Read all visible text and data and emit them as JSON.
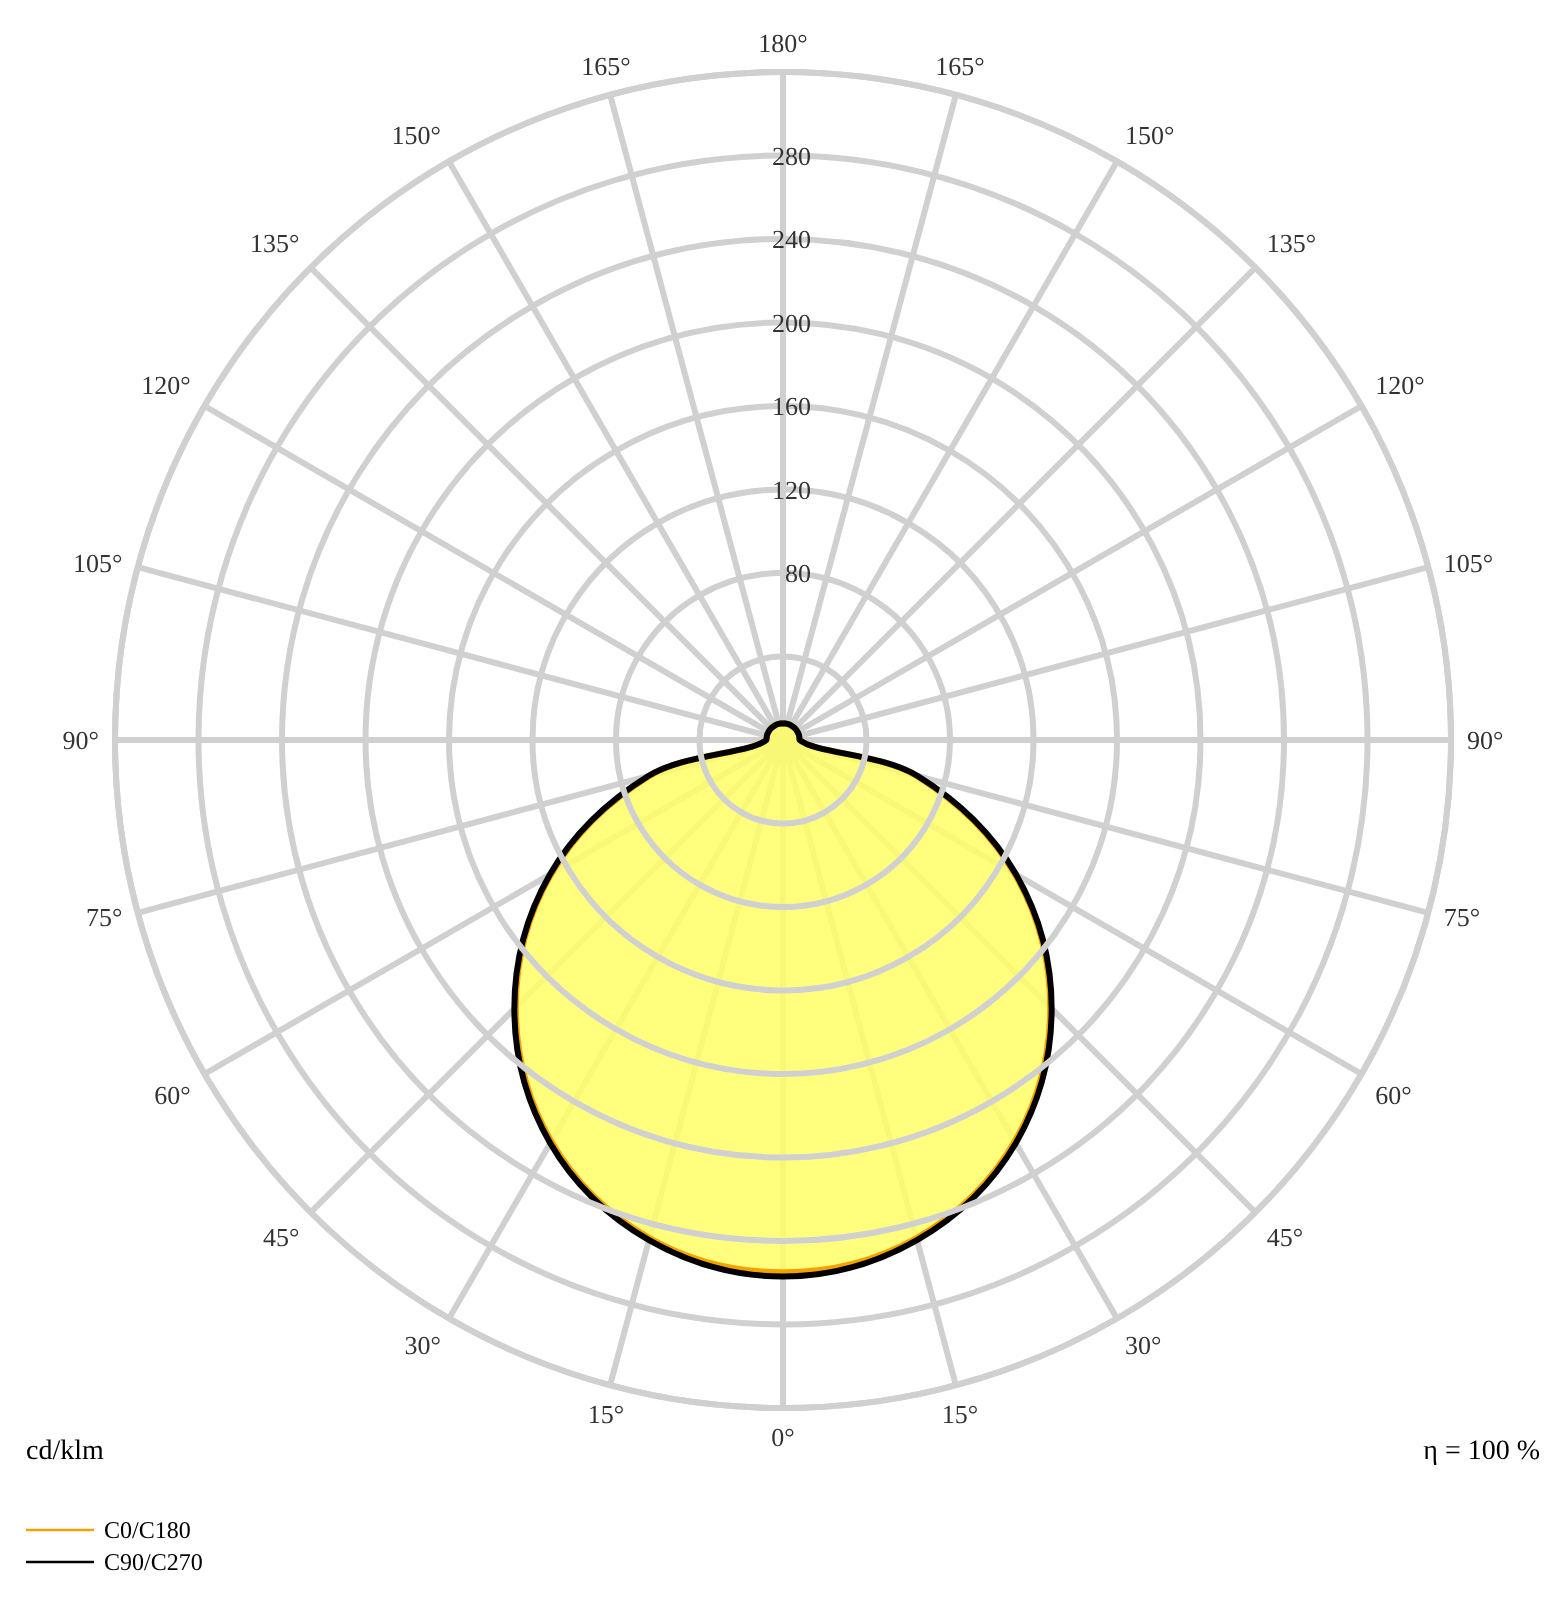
{
  "chart_data": {
    "type": "radar",
    "ylabel": "cd/klm",
    "annotations": [
      "η = 100 %"
    ],
    "categories": [
      "180°",
      "165°",
      "150°",
      "135°",
      "120°",
      "105°",
      "90°",
      "75°",
      "60°",
      "45°",
      "30°",
      "15°",
      "0°",
      "15°",
      "30°",
      "45°",
      "60°",
      "75°",
      "90°",
      "105°",
      "120°",
      "135°",
      "150°",
      "165°"
    ],
    "series": [
      {
        "name": "C0/C180",
        "color": "#f5a200",
        "values": [
          8,
          8,
          8,
          8,
          8,
          8,
          8,
          66,
          128,
          181,
          222,
          247,
          255,
          247,
          222,
          181,
          128,
          66,
          8,
          8,
          8,
          8,
          8,
          8
        ]
      },
      {
        "name": "C90/C270",
        "color": "#000000",
        "values": [
          8,
          8,
          8,
          8,
          8,
          8,
          8,
          67,
          129,
          182,
          223,
          248,
          257,
          248,
          223,
          182,
          129,
          67,
          8,
          8,
          8,
          8,
          8,
          8
        ]
      }
    ],
    "ylim": [
      0,
      320
    ],
    "yticks": [
      80,
      120,
      160,
      200,
      240,
      280
    ],
    "grid": true,
    "legend": "bottom left",
    "marker": "none",
    "line_style": "solid"
  }
}
